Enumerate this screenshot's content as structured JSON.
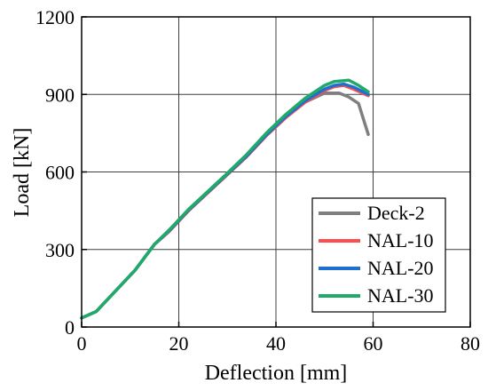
{
  "chart_data": {
    "type": "line",
    "title": "",
    "xlabel": "Deflection [mm]",
    "ylabel": "Load [kN]",
    "xlim": [
      0,
      80
    ],
    "ylim": [
      0,
      1200
    ],
    "xticks": [
      0,
      20,
      40,
      60,
      80
    ],
    "yticks": [
      0,
      300,
      600,
      900,
      1200
    ],
    "grid": true,
    "legend_position": "bottom-right",
    "series": [
      {
        "name": "Deck-2",
        "color": "#7f7f7f",
        "x": [
          0,
          3,
          7,
          11,
          15,
          18,
          22,
          26,
          30,
          34,
          38,
          42,
          46,
          50,
          53,
          55,
          57,
          59
        ],
        "y": [
          35,
          60,
          140,
          220,
          320,
          370,
          450,
          520,
          590,
          660,
          740,
          810,
          870,
          905,
          905,
          890,
          865,
          745
        ]
      },
      {
        "name": "NAL-10",
        "color": "#ff4d4d",
        "x": [
          0,
          3,
          7,
          11,
          15,
          18,
          22,
          26,
          30,
          34,
          38,
          42,
          46,
          50,
          52,
          54,
          56,
          59
        ],
        "y": [
          35,
          60,
          140,
          220,
          320,
          370,
          450,
          520,
          590,
          660,
          740,
          810,
          870,
          915,
          930,
          935,
          920,
          895
        ]
      },
      {
        "name": "NAL-20",
        "color": "#1f6fd1",
        "x": [
          0,
          3,
          7,
          11,
          15,
          18,
          22,
          26,
          30,
          34,
          38,
          42,
          46,
          50,
          52,
          54,
          56,
          59
        ],
        "y": [
          35,
          60,
          140,
          220,
          320,
          372,
          452,
          522,
          592,
          662,
          743,
          814,
          875,
          920,
          935,
          940,
          928,
          900
        ]
      },
      {
        "name": "NAL-30",
        "color": "#1faa6a",
        "x": [
          0,
          3,
          7,
          11,
          15,
          18,
          22,
          26,
          30,
          34,
          38,
          42,
          46,
          50,
          52,
          55,
          57,
          59
        ],
        "y": [
          35,
          60,
          140,
          220,
          320,
          375,
          455,
          525,
          595,
          668,
          750,
          822,
          885,
          935,
          950,
          955,
          935,
          910
        ]
      }
    ]
  }
}
